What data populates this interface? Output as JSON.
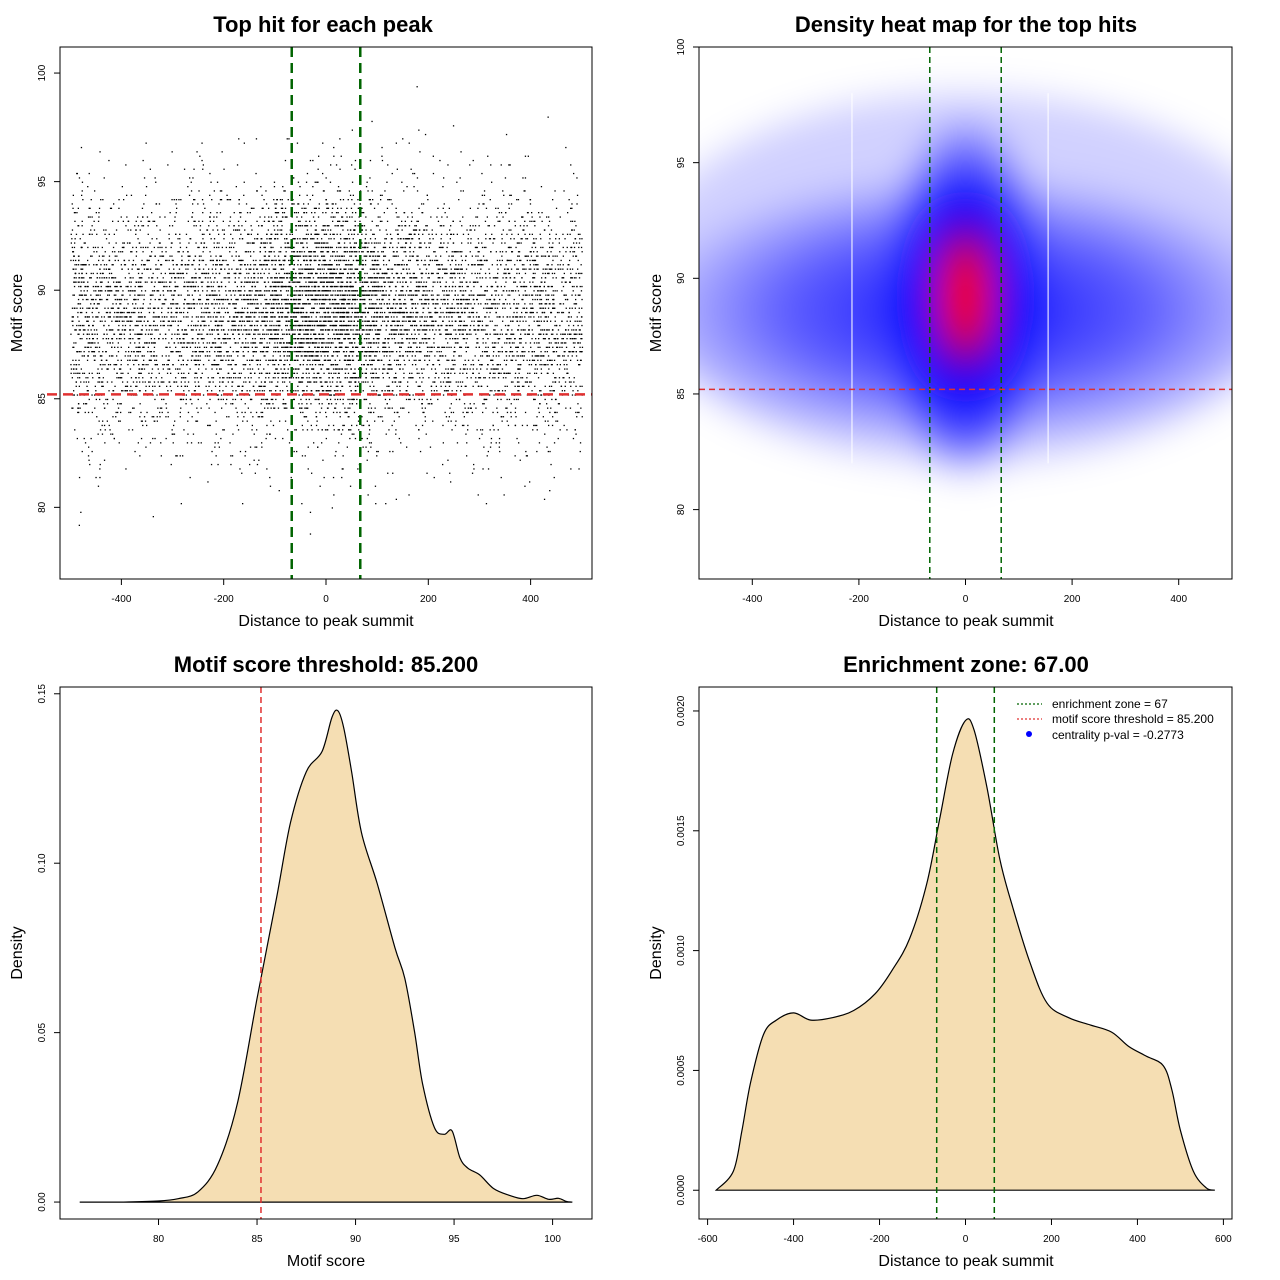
{
  "colors": {
    "enrichment": "#006400",
    "threshold": "#e03030",
    "fill": "#f5deb3",
    "scatter": "#000000",
    "heat_low": "#0000ff",
    "heat_high": "#ff0000",
    "centrality": "#0000ff"
  },
  "chart_data": [
    {
      "type": "scatter",
      "title": "Top hit for each peak",
      "xlabel": "Distance to peak summit",
      "ylabel": "Motif score",
      "xlim": [
        -520,
        520
      ],
      "ylim": [
        76.7,
        101.2
      ],
      "xticks": [
        -400,
        -200,
        0,
        200,
        400
      ],
      "yticks": [
        80,
        85,
        90,
        95,
        100
      ],
      "vlines": [
        -67,
        67
      ],
      "hline": 85.2,
      "grid": false,
      "point_distribution": {
        "x_range": [
          -500,
          500
        ],
        "y_center": 88.8,
        "y_spread": 2.8,
        "central_peak_x": 0,
        "central_peak_y": 89.5
      }
    },
    {
      "type": "heatmap",
      "title": "Density heat map for the top hits",
      "xlabel": "Distance to peak summit",
      "ylabel": "Motif score",
      "xlim": [
        -500,
        500
      ],
      "ylim": [
        77,
        100
      ],
      "xticks": [
        -400,
        -200,
        0,
        200,
        400
      ],
      "yticks": [
        80,
        85,
        90,
        95,
        100
      ],
      "vlines": [
        -67,
        67
      ],
      "hline": 85.2,
      "hotspot": {
        "x": 0,
        "y": 89.2
      }
    },
    {
      "type": "area",
      "title": "Motif score threshold: 85.200",
      "xlabel": "Motif score",
      "ylabel": "Density",
      "xlim": [
        75,
        102
      ],
      "ylim": [
        -0.005,
        0.152
      ],
      "xticks": [
        80,
        85,
        90,
        95,
        100
      ],
      "yticks": [
        "0.00",
        "0.05",
        "0.10",
        "0.15"
      ],
      "vline": 85.2,
      "x": [
        76,
        78,
        80,
        81,
        82,
        83,
        84,
        85,
        86,
        86.7,
        87.5,
        88.3,
        88.8,
        89.1,
        89.4,
        89.8,
        90.3,
        91.1,
        92,
        92.5,
        93,
        93.4,
        94,
        94.5,
        94.9,
        95.3,
        95.7,
        96.3,
        97,
        97.8,
        98.5,
        99.2,
        99.8,
        100.3,
        100.7,
        101
      ],
      "y": [
        0,
        0,
        0.0003,
        0.001,
        0.003,
        0.011,
        0.029,
        0.06,
        0.09,
        0.112,
        0.127,
        0.133,
        0.143,
        0.145,
        0.14,
        0.127,
        0.109,
        0.094,
        0.075,
        0.066,
        0.05,
        0.035,
        0.022,
        0.02,
        0.021,
        0.013,
        0.01,
        0.008,
        0.004,
        0.002,
        0.001,
        0.002,
        0.0008,
        0.0011,
        0.0002,
        0
      ]
    },
    {
      "type": "area",
      "title": "Enrichment zone: 67.00",
      "xlabel": "Distance to peak summit",
      "ylabel": "Density",
      "xlim": [
        -620,
        620
      ],
      "ylim": [
        -0.00012,
        0.0021
      ],
      "xticks": [
        -600,
        -400,
        -200,
        0,
        200,
        400,
        600
      ],
      "yticks": [
        "0.0000",
        "0.0005",
        "0.0010",
        "0.0015",
        "0.0020"
      ],
      "vlines": [
        -67,
        67
      ],
      "x": [
        -580,
        -540,
        -520,
        -500,
        -470,
        -440,
        -400,
        -360,
        -310,
        -260,
        -210,
        -170,
        -130,
        -90,
        -60,
        -30,
        0,
        20,
        50,
        80,
        110,
        150,
        190,
        240,
        290,
        340,
        380,
        420,
        460,
        480,
        500,
        530,
        560,
        580
      ],
      "y": [
        0,
        8e-05,
        0.00025,
        0.00045,
        0.00065,
        0.00071,
        0.00074,
        0.00071,
        0.00072,
        0.00075,
        0.00082,
        0.00092,
        0.00105,
        0.00128,
        0.00155,
        0.00182,
        0.00196,
        0.00192,
        0.00168,
        0.00138,
        0.00118,
        0.00095,
        0.00078,
        0.00072,
        0.00069,
        0.00066,
        0.0006,
        0.00056,
        0.00052,
        0.00042,
        0.00025,
        8e-05,
        1e-05,
        0
      ],
      "legend": {
        "placement": "top-right",
        "entries": [
          {
            "label": "enrichment zone = 67",
            "style": "dotted-line",
            "color": "#006400"
          },
          {
            "label": "motif score threshold = 85.200",
            "style": "dotted-line",
            "color": "#e03030"
          },
          {
            "label": "centrality p-val = -0.2773",
            "style": "dot",
            "color": "#0000ff"
          }
        ]
      }
    }
  ]
}
